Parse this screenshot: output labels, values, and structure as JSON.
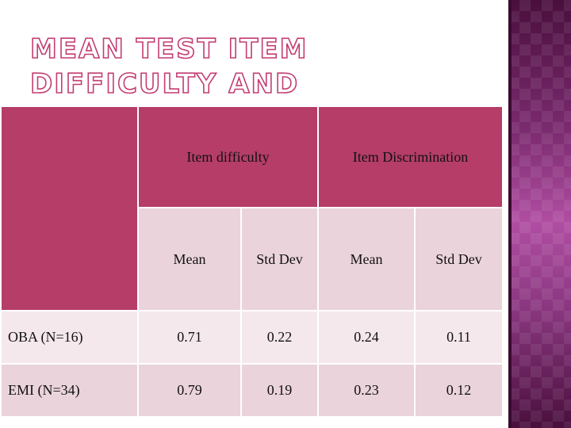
{
  "slide": {
    "title": "MEAN TEST ITEM DIFFICULTY AND DISCRIMINATION"
  },
  "table": {
    "group_headers": [
      "Item difficulty",
      "Item Discrimination"
    ],
    "sub_headers": [
      "Mean",
      "Std Dev",
      "Mean",
      "Std Dev"
    ],
    "rows": [
      {
        "label": "OBA (N=16)",
        "values": [
          "0.71",
          "0.22",
          "0.24",
          "0.11"
        ]
      },
      {
        "label": "EMI (N=34)",
        "values": [
          "0.79",
          "0.19",
          "0.23",
          "0.12"
        ]
      }
    ]
  },
  "colors": {
    "header_fill": "#b53d68",
    "body_fill": "#ead3db",
    "title_outline": "#c33d72",
    "side_panel": "#7a2a6e"
  }
}
